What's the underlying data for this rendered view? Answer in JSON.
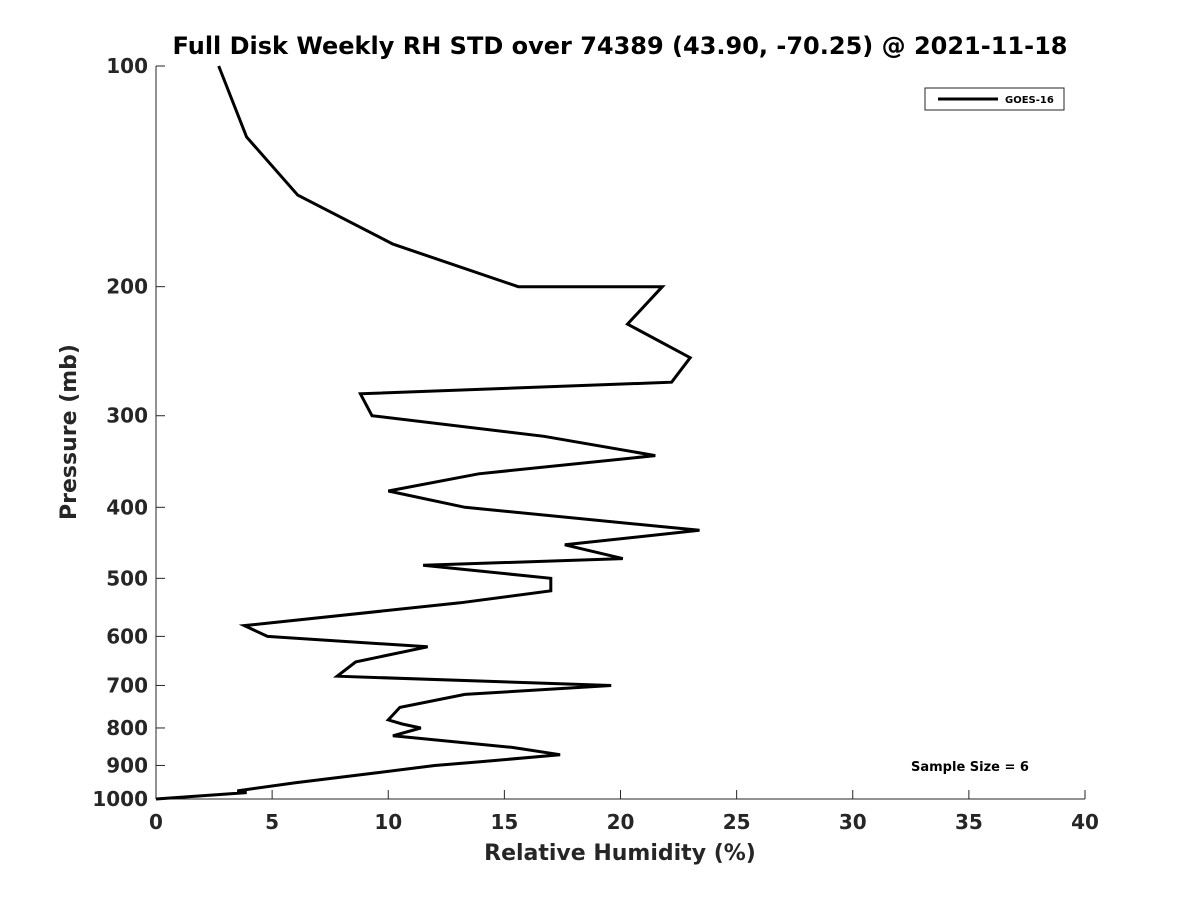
{
  "chart_data": {
    "type": "line",
    "title": "Full Disk Weekly RH STD over 74389 (43.90, -70.25) @ 2021-11-18",
    "xlabel": "Relative Humidity (%)",
    "ylabel": "Pressure (mb)",
    "xlim": [
      0,
      40
    ],
    "ylim": [
      100,
      1000
    ],
    "y_scale": "log",
    "y_reversed": true,
    "grid": false,
    "legend_position": "top-right",
    "x_ticks": [
      0,
      5,
      10,
      15,
      20,
      25,
      30,
      35,
      40
    ],
    "x_tick_labels": [
      "0",
      "5",
      "10",
      "15",
      "20",
      "25",
      "30",
      "35",
      "40"
    ],
    "y_ticks": [
      100,
      200,
      300,
      400,
      500,
      600,
      700,
      800,
      900,
      1000
    ],
    "y_tick_labels": [
      "100",
      "200",
      "300",
      "400",
      "500",
      "600",
      "700",
      "800",
      "900",
      "1000"
    ],
    "series": [
      {
        "name": "GOES-16",
        "color": "#000000",
        "points": [
          [
            2.7,
            100
          ],
          [
            3.9,
            125
          ],
          [
            6.1,
            150
          ],
          [
            10.2,
            175
          ],
          [
            15.6,
            200
          ],
          [
            21.8,
            200
          ],
          [
            20.3,
            225
          ],
          [
            23.0,
            250
          ],
          [
            22.2,
            270
          ],
          [
            8.8,
            280
          ],
          [
            9.3,
            300
          ],
          [
            16.7,
            320
          ],
          [
            21.5,
            340
          ],
          [
            13.9,
            360
          ],
          [
            10.0,
            380
          ],
          [
            13.3,
            400
          ],
          [
            23.4,
            430
          ],
          [
            17.6,
            450
          ],
          [
            20.1,
            470
          ],
          [
            11.5,
            480
          ],
          [
            17.0,
            500
          ],
          [
            17.0,
            520
          ],
          [
            13.1,
            540
          ],
          [
            3.8,
            580
          ],
          [
            4.8,
            600
          ],
          [
            11.7,
            620
          ],
          [
            8.6,
            650
          ],
          [
            7.8,
            680
          ],
          [
            19.6,
            700
          ],
          [
            13.3,
            720
          ],
          [
            10.5,
            750
          ],
          [
            10.0,
            780
          ],
          [
            10.6,
            790
          ],
          [
            11.4,
            800
          ],
          [
            10.2,
            820
          ],
          [
            15.3,
            850
          ],
          [
            17.4,
            870
          ],
          [
            13.9,
            890
          ],
          [
            12.0,
            900
          ],
          [
            9.6,
            920
          ],
          [
            6.0,
            950
          ],
          [
            3.5,
            975
          ],
          [
            3.9,
            980
          ],
          [
            0.0,
            1000
          ]
        ]
      }
    ],
    "legend": [
      "GOES-16"
    ],
    "annotations": [
      "Sample Size = 6"
    ]
  }
}
